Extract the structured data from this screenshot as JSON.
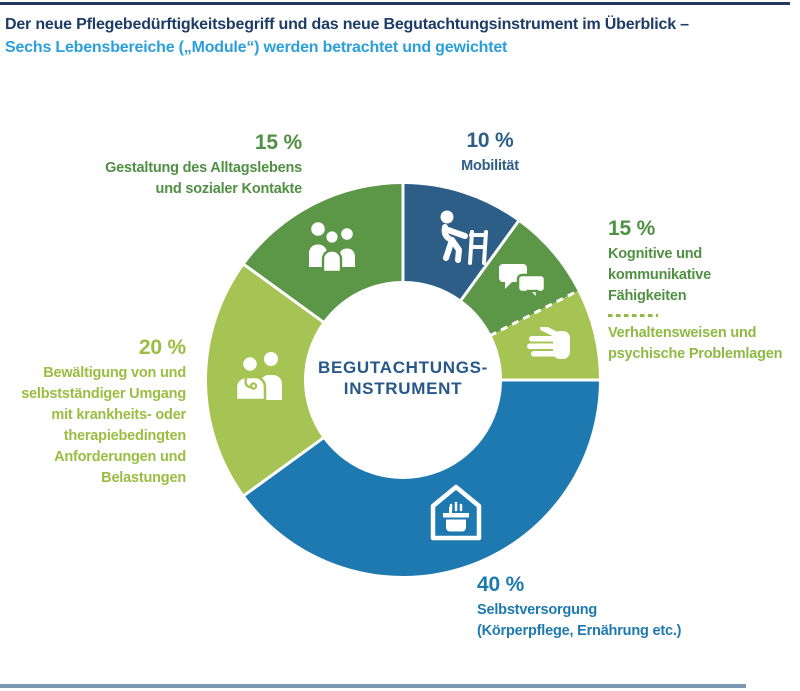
{
  "page": {
    "title_line1": "Der neue Pflegebedürftigkeitsbegriff und das neue Begutachtungsinstrument im Überblick –",
    "title_line2": "Sechs Lebensbereiche („Module“) werden betrachtet und gewichtet"
  },
  "colors": {
    "title_navy": "#1d3c66",
    "title_sky_blue": "#2b9fdc",
    "dark_blue_segment": "#2d5e87",
    "medium_green_segment": "#5b9747",
    "light_green_segment": "#a6c454",
    "bright_blue_segment": "#1e79b0",
    "green_label": "#4f9043",
    "light_green_label": "#9abd42",
    "secondary_green_label": "#8fb943",
    "center_label_blue": "#27588a",
    "top_rule": "#1e3a5f",
    "bottom_rule": "#7f98b2",
    "divider_white": "#ffffff"
  },
  "chart_data": {
    "type": "pie",
    "variant": "donut",
    "title": "Der neue Pflegebedürftigkeitsbegriff und das neue Begutachtungsinstrument im Überblick – Sechs Lebensbereiche („Module“) werden betrachtet und gewichtet",
    "start_angle_deg": 0,
    "direction": "clockwise",
    "outer_radius": 196,
    "inner_radius": 99,
    "center_label_line1": "BEGUTACHTUNGS-",
    "center_label_line2": "INSTRUMENT",
    "segments": [
      {
        "id": "mobilitaet",
        "label": "Mobilität",
        "weight_pct": 10,
        "arc_pct": 10,
        "color": "#2d5e87",
        "icon": "person-with-walker-icon",
        "divider_after": "solid"
      },
      {
        "id": "kognitive",
        "label": "Kognitive und kommunikative Fähigkeiten",
        "weight_pct": 15,
        "arc_pct": 7.5,
        "color": "#5b9747",
        "icon": "speech-bubbles-icon",
        "divider_after": "dashed"
      },
      {
        "id": "verhaltensweisen",
        "label": "Verhaltensweisen und psychische Problemlagen",
        "arc_pct": 7.5,
        "color": "#a6c454",
        "icon": "hand-icon",
        "divider_after": "solid"
      },
      {
        "id": "selbstversorgung",
        "label": "Selbstversorgung (Körperpflege, Ernährung etc.)",
        "weight_pct": 40,
        "arc_pct": 40,
        "color": "#1e79b0",
        "icon": "house-cooking-pot-icon",
        "divider_after": "solid"
      },
      {
        "id": "bewaeltigung",
        "label": "Bewältigung von und selbstständiger Umgang mit krankheits- oder therapiebedingten Anforderungen und Belastungen",
        "weight_pct": 20,
        "arc_pct": 20,
        "color": "#a6c454",
        "icon": "doctor-patient-icon",
        "divider_after": "solid"
      },
      {
        "id": "gestaltung",
        "label": "Gestaltung des Alltagslebens und sozialer Kontakte",
        "weight_pct": 15,
        "arc_pct": 15,
        "color": "#5b9747",
        "icon": "group-of-people-icon",
        "divider_after": "solid"
      }
    ]
  },
  "labels": {
    "gestaltung": {
      "pct": "15 %",
      "line1": "Gestaltung des Alltagslebens",
      "line2": "und sozialer Kontakte"
    },
    "mobilitaet": {
      "pct": "10 %",
      "line1": "Mobilität"
    },
    "kognitive": {
      "pct": "15 %",
      "line1": "Kognitive und kommunikative",
      "line2": "Fähigkeiten",
      "line3": "Verhaltensweisen und",
      "line4": "psychische Problemlagen"
    },
    "bewaeltigung": {
      "pct": "20 %",
      "line1": "Bewältigung von und",
      "line2": "selbstständiger Umgang",
      "line3": "mit krankheits- oder",
      "line4": "therapiebedingten",
      "line5": "Anforderungen und",
      "line6": "Belastungen"
    },
    "selbstversorgung": {
      "pct": "40 %",
      "line1": "Selbstversorgung",
      "line2": "(Körperpflege, Ernährung etc.)"
    },
    "center": {
      "line1": "BEGUTACHTUNGS-",
      "line2": "INSTRUMENT"
    }
  }
}
